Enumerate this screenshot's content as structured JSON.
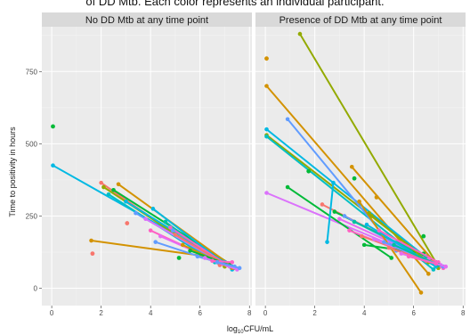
{
  "caption": "of DD Mtb. Each color represents an individual participant.",
  "chart_data": {
    "type": "line",
    "xlabel": "log10CFU/mL",
    "ylabel": "Time to positivity in hours",
    "xlim": [
      -0.4,
      8.1
    ],
    "ylim": [
      -60,
      905
    ],
    "xticks": [
      0,
      2,
      4,
      6,
      8
    ],
    "yticks": [
      0,
      250,
      500,
      750
    ],
    "grid": true,
    "legend": "none",
    "palette": [
      "#F8766D",
      "#D39200",
      "#93AA00",
      "#00BA38",
      "#00C19F",
      "#00B9E3",
      "#619CFF",
      "#DB72FB",
      "#FF61C3",
      "#E76BF3"
    ],
    "panels": [
      {
        "name": "No DD Mtb at any time point",
        "points": [
          {
            "x": 0.05,
            "y": 560,
            "c": "#00BA38"
          },
          {
            "x": 1.65,
            "y": 120,
            "c": "#F8766D"
          },
          {
            "x": 3.05,
            "y": 225,
            "c": "#F8766D"
          },
          {
            "x": 5.15,
            "y": 105,
            "c": "#00BA38"
          },
          {
            "x": 4.9,
            "y": 200,
            "c": "#619CFF"
          }
        ],
        "lines": [
          {
            "x": [
              0.05,
              7.3
            ],
            "y": [
              425,
              75
            ],
            "c": "#00B9E3"
          },
          {
            "x": [
              1.6,
              6.3
            ],
            "y": [
              165,
              110
            ],
            "c": "#D39200"
          },
          {
            "x": [
              2.0,
              6.8
            ],
            "y": [
              365,
              80
            ],
            "c": "#F8766D"
          },
          {
            "x": [
              2.1,
              7.0
            ],
            "y": [
              350,
              75
            ],
            "c": "#93AA00"
          },
          {
            "x": [
              2.3,
              6.6
            ],
            "y": [
              325,
              90
            ],
            "c": "#00BFC4"
          },
          {
            "x": [
              2.5,
              7.2
            ],
            "y": [
              340,
              85
            ],
            "c": "#00BA38"
          },
          {
            "x": [
              2.7,
              7.4
            ],
            "y": [
              360,
              70
            ],
            "c": "#D39200"
          },
          {
            "x": [
              3.0,
              7.0
            ],
            "y": [
              300,
              90
            ],
            "c": "#00B9E3"
          },
          {
            "x": [
              3.4,
              6.7
            ],
            "y": [
              260,
              95
            ],
            "c": "#619CFF"
          },
          {
            "x": [
              3.8,
              7.1
            ],
            "y": [
              240,
              80
            ],
            "c": "#DB72FB"
          },
          {
            "x": [
              4.0,
              6.9
            ],
            "y": [
              200,
              85
            ],
            "c": "#FF61C3"
          },
          {
            "x": [
              4.1,
              7.3
            ],
            "y": [
              275,
              65
            ],
            "c": "#00B9E3"
          },
          {
            "x": [
              4.2,
              6.5
            ],
            "y": [
              160,
              95
            ],
            "c": "#619CFF"
          },
          {
            "x": [
              4.4,
              7.2
            ],
            "y": [
              180,
              75
            ],
            "c": "#E76BF3"
          },
          {
            "x": [
              4.6,
              6.8
            ],
            "y": [
              230,
              90
            ],
            "c": "#00C19F"
          },
          {
            "x": [
              4.8,
              7.1
            ],
            "y": [
              210,
              80
            ],
            "c": "#FF61C3"
          },
          {
            "x": [
              5.0,
              7.0
            ],
            "y": [
              185,
              85
            ],
            "c": "#F8766D"
          },
          {
            "x": [
              5.3,
              7.3
            ],
            "y": [
              150,
              70
            ],
            "c": "#D39200"
          },
          {
            "x": [
              5.6,
              7.2
            ],
            "y": [
              130,
              80
            ],
            "c": "#00BA38"
          },
          {
            "x": [
              5.9,
              7.4
            ],
            "y": [
              110,
              75
            ],
            "c": "#619CFF"
          },
          {
            "x": [
              6.2,
              7.5
            ],
            "y": [
              105,
              65
            ],
            "c": "#DB72FB"
          },
          {
            "x": [
              6.5,
              7.3
            ],
            "y": [
              95,
              90
            ],
            "c": "#FF61C3"
          },
          {
            "x": [
              6.7,
              7.6
            ],
            "y": [
              90,
              70
            ],
            "c": "#619CFF"
          }
        ]
      },
      {
        "name": "Presence of DD Mtb at any time point",
        "points": [
          {
            "x": 0.05,
            "y": 795,
            "c": "#D39200"
          },
          {
            "x": 1.75,
            "y": 405,
            "c": "#00BA38"
          },
          {
            "x": 3.6,
            "y": 380,
            "c": "#00BA38"
          },
          {
            "x": 4.5,
            "y": 315,
            "c": "#D39200"
          },
          {
            "x": 6.4,
            "y": 180,
            "c": "#00BA38"
          },
          {
            "x": 4.3,
            "y": 250,
            "c": "#93AA00"
          }
        ],
        "lines": [
          {
            "x": [
              0.05,
              6.6
            ],
            "y": [
              700,
              50
            ],
            "c": "#D39200"
          },
          {
            "x": [
              0.05,
              6.9
            ],
            "y": [
              550,
              80
            ],
            "c": "#00B9E3"
          },
          {
            "x": [
              0.05,
              7.0
            ],
            "y": [
              530,
              70
            ],
            "c": "#93AA00"
          },
          {
            "x": [
              0.05,
              6.8
            ],
            "y": [
              525,
              65
            ],
            "c": "#00BFC4"
          },
          {
            "x": [
              0.05,
              7.2
            ],
            "y": [
              330,
              75
            ],
            "c": "#DB72FB"
          },
          {
            "x": [
              0.9,
              5.3
            ],
            "y": [
              585,
              130
            ],
            "c": "#619CFF"
          },
          {
            "x": [
              0.9,
              5.1
            ],
            "y": [
              350,
              105
            ],
            "c": "#00BA38"
          },
          {
            "x": [
              1.4,
              6.9
            ],
            "y": [
              880,
              90
            ],
            "c": "#93AA00"
          },
          {
            "x": [
              2.3,
              6.4
            ],
            "y": [
              290,
              110
            ],
            "c": "#F8766D"
          },
          {
            "x": [
              2.5,
              2.75
            ],
            "y": [
              160,
              365
            ],
            "c": "#00B9E3"
          },
          {
            "x": [
              2.8,
              6.9
            ],
            "y": [
              265,
              90
            ],
            "c": "#00BA38"
          },
          {
            "x": [
              3.0,
              6.6
            ],
            "y": [
              240,
              100
            ],
            "c": "#E76BF3"
          },
          {
            "x": [
              3.2,
              6.9
            ],
            "y": [
              250,
              80
            ],
            "c": "#619CFF"
          },
          {
            "x": [
              3.4,
              7.2
            ],
            "y": [
              200,
              70
            ],
            "c": "#FF61C3"
          },
          {
            "x": [
              3.5,
              6.8
            ],
            "y": [
              420,
              95
            ],
            "c": "#D39200"
          },
          {
            "x": [
              3.6,
              6.5
            ],
            "y": [
              230,
              110
            ],
            "c": "#00C19F"
          },
          {
            "x": [
              3.8,
              6.3
            ],
            "y": [
              300,
              -15
            ],
            "c": "#D39200"
          },
          {
            "x": [
              3.9,
              7.0
            ],
            "y": [
              180,
              85
            ],
            "c": "#F8766D"
          },
          {
            "x": [
              4.0,
              6.4
            ],
            "y": [
              150,
              120
            ],
            "c": "#00BA38"
          },
          {
            "x": [
              4.1,
              6.9
            ],
            "y": [
              220,
              75
            ],
            "c": "#00B9E3"
          },
          {
            "x": [
              4.2,
              6.6
            ],
            "y": [
              260,
              90
            ],
            "c": "#93AA00"
          },
          {
            "x": [
              4.4,
              7.1
            ],
            "y": [
              170,
              80
            ],
            "c": "#DB72FB"
          },
          {
            "x": [
              4.6,
              7.0
            ],
            "y": [
              200,
              90
            ],
            "c": "#FF61C3"
          },
          {
            "x": [
              4.8,
              7.2
            ],
            "y": [
              160,
              75
            ],
            "c": "#619CFF"
          },
          {
            "x": [
              5.0,
              6.5
            ],
            "y": [
              140,
              95
            ],
            "c": "#F8766D"
          },
          {
            "x": [
              5.2,
              7.0
            ],
            "y": [
              150,
              80
            ],
            "c": "#00C19F"
          },
          {
            "x": [
              5.5,
              7.3
            ],
            "y": [
              120,
              75
            ],
            "c": "#E76BF3"
          },
          {
            "x": [
              5.8,
              6.9
            ],
            "y": [
              110,
              85
            ],
            "c": "#FF61C3"
          }
        ]
      }
    ]
  }
}
